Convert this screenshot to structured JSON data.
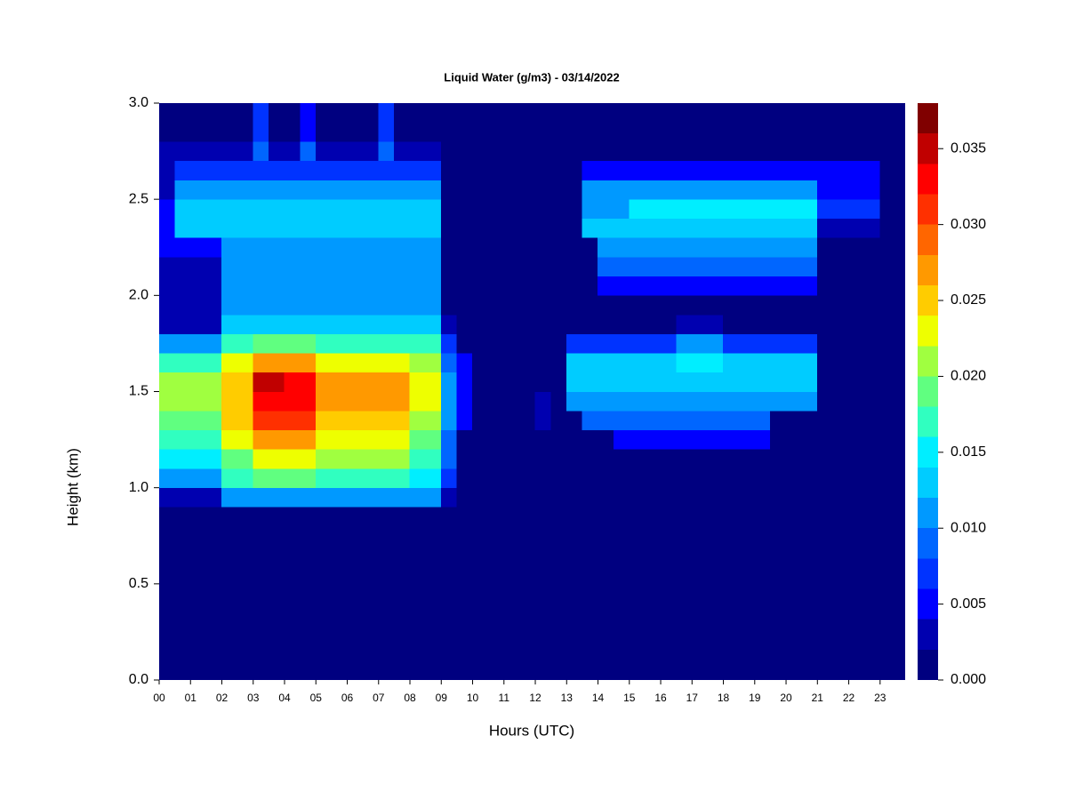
{
  "chart_data": {
    "type": "heatmap",
    "title": "Liquid Water (g/m3) - 03/14/2022",
    "xlabel": "Hours (UTC)",
    "ylabel": "Height (km)",
    "x": [
      0,
      0.5,
      1,
      1.5,
      2,
      2.5,
      3,
      3.5,
      4,
      4.5,
      5,
      5.5,
      6,
      6.5,
      7,
      7.5,
      8,
      8.5,
      9,
      9.5,
      10,
      10.5,
      11,
      11.5,
      12,
      12.5,
      13,
      13.5,
      14,
      14.5,
      15,
      15.5,
      16,
      16.5,
      17,
      17.5,
      18,
      18.5,
      19,
      19.5,
      20,
      20.5,
      21,
      21.5,
      22,
      22.5,
      23,
      23.5
    ],
    "y": [
      0,
      0.9,
      1.0,
      1.1,
      1.2,
      1.3,
      1.4,
      1.5,
      1.6,
      1.7,
      1.8,
      1.9,
      2.0,
      2.1,
      2.2,
      2.3,
      2.4,
      2.5,
      2.6,
      2.7,
      2.8
    ],
    "z": [
      [
        0,
        0,
        0,
        0,
        0,
        0,
        0,
        0,
        0,
        0,
        0,
        0,
        0,
        0,
        0,
        0,
        0,
        0,
        0,
        0,
        0,
        0,
        0,
        0,
        0,
        0,
        0,
        0,
        0,
        0,
        0,
        0,
        0,
        0,
        0,
        0,
        0,
        0,
        0,
        0,
        0,
        0,
        0,
        0,
        0,
        0,
        0,
        0
      ],
      [
        0.003,
        0.003,
        0.003,
        0.003,
        0.01,
        0.01,
        0.01,
        0.01,
        0.01,
        0.01,
        0.01,
        0.01,
        0.01,
        0.01,
        0.01,
        0.01,
        0.01,
        0.01,
        0.003,
        0,
        0,
        0,
        0,
        0,
        0,
        0,
        0,
        0,
        0,
        0,
        0,
        0,
        0,
        0,
        0,
        0,
        0,
        0,
        0,
        0,
        0,
        0,
        0,
        0,
        0,
        0,
        0,
        0
      ],
      [
        0.01,
        0.01,
        0.01,
        0.01,
        0.016,
        0.016,
        0.018,
        0.018,
        0.018,
        0.018,
        0.016,
        0.016,
        0.016,
        0.016,
        0.016,
        0.016,
        0.014,
        0.014,
        0.006,
        0,
        0,
        0,
        0,
        0,
        0,
        0,
        0,
        0,
        0,
        0,
        0,
        0,
        0,
        0,
        0,
        0,
        0,
        0,
        0,
        0,
        0,
        0,
        0,
        0,
        0,
        0,
        0,
        0
      ],
      [
        0.014,
        0.014,
        0.014,
        0.014,
        0.019,
        0.019,
        0.022,
        0.022,
        0.022,
        0.022,
        0.02,
        0.02,
        0.02,
        0.02,
        0.02,
        0.02,
        0.017,
        0.017,
        0.008,
        0,
        0,
        0,
        0,
        0,
        0,
        0,
        0,
        0,
        0,
        0,
        0,
        0,
        0,
        0,
        0,
        0,
        0,
        0,
        0,
        0,
        0,
        0,
        0,
        0,
        0,
        0,
        0,
        0
      ],
      [
        0.017,
        0.017,
        0.017,
        0.017,
        0.022,
        0.022,
        0.026,
        0.026,
        0.026,
        0.026,
        0.023,
        0.023,
        0.023,
        0.023,
        0.023,
        0.023,
        0.019,
        0.019,
        0.009,
        0,
        0,
        0,
        0,
        0,
        0,
        0,
        0,
        0,
        0,
        0.004,
        0.004,
        0.004,
        0.004,
        0.004,
        0.004,
        0.004,
        0.004,
        0.004,
        0.004,
        0,
        0,
        0,
        0,
        0,
        0,
        0,
        0,
        0
      ],
      [
        0.019,
        0.019,
        0.019,
        0.019,
        0.024,
        0.024,
        0.03,
        0.03,
        0.03,
        0.03,
        0.025,
        0.025,
        0.025,
        0.025,
        0.025,
        0.025,
        0.021,
        0.021,
        0.01,
        0.004,
        0,
        0,
        0,
        0,
        0.003,
        0,
        0,
        0.009,
        0.009,
        0.009,
        0.009,
        0.009,
        0.009,
        0.009,
        0.009,
        0.009,
        0.009,
        0.009,
        0.009,
        0,
        0,
        0,
        0,
        0,
        0,
        0,
        0,
        0
      ],
      [
        0.02,
        0.02,
        0.02,
        0.02,
        0.025,
        0.025,
        0.033,
        0.033,
        0.032,
        0.032,
        0.026,
        0.026,
        0.026,
        0.026,
        0.026,
        0.026,
        0.022,
        0.022,
        0.011,
        0.005,
        0,
        0,
        0,
        0,
        0.003,
        0,
        0.01,
        0.01,
        0.01,
        0.01,
        0.01,
        0.01,
        0.01,
        0.01,
        0.01,
        0.01,
        0.01,
        0.01,
        0.01,
        0.01,
        0.01,
        0.01,
        0,
        0,
        0,
        0,
        0,
        0
      ],
      [
        0.02,
        0.02,
        0.02,
        0.02,
        0.025,
        0.025,
        0.034,
        0.034,
        0.033,
        0.033,
        0.026,
        0.026,
        0.026,
        0.026,
        0.026,
        0.026,
        0.022,
        0.022,
        0.011,
        0.005,
        0,
        0,
        0,
        0,
        0,
        0,
        0.012,
        0.012,
        0.012,
        0.012,
        0.012,
        0.012,
        0.012,
        0.013,
        0.013,
        0.013,
        0.012,
        0.012,
        0.012,
        0.012,
        0.012,
        0.012,
        0,
        0,
        0,
        0,
        0,
        0
      ],
      [
        0.017,
        0.017,
        0.017,
        0.017,
        0.022,
        0.022,
        0.026,
        0.026,
        0.026,
        0.026,
        0.023,
        0.023,
        0.023,
        0.023,
        0.023,
        0.023,
        0.02,
        0.02,
        0.009,
        0.004,
        0,
        0,
        0,
        0,
        0,
        0,
        0.012,
        0.012,
        0.012,
        0.012,
        0.012,
        0.012,
        0.012,
        0.014,
        0.014,
        0.014,
        0.012,
        0.012,
        0.012,
        0.012,
        0.012,
        0.012,
        0,
        0,
        0,
        0,
        0,
        0
      ],
      [
        0.011,
        0.011,
        0.011,
        0.011,
        0.016,
        0.016,
        0.018,
        0.018,
        0.018,
        0.018,
        0.016,
        0.016,
        0.016,
        0.016,
        0.016,
        0.016,
        0.016,
        0.016,
        0.006,
        0,
        0,
        0,
        0,
        0,
        0,
        0,
        0.006,
        0.006,
        0.006,
        0.006,
        0.006,
        0.006,
        0.006,
        0.01,
        0.01,
        0.01,
        0.006,
        0.006,
        0.006,
        0.006,
        0.006,
        0.006,
        0,
        0,
        0,
        0,
        0,
        0
      ],
      [
        0.003,
        0.003,
        0.003,
        0.003,
        0.012,
        0.012,
        0.012,
        0.012,
        0.012,
        0.012,
        0.012,
        0.012,
        0.012,
        0.012,
        0.012,
        0.012,
        0.012,
        0.012,
        0.002,
        0,
        0,
        0,
        0,
        0,
        0,
        0,
        0,
        0,
        0,
        0,
        0,
        0,
        0,
        0.003,
        0.003,
        0.003,
        0,
        0,
        0,
        0,
        0,
        0,
        0,
        0,
        0,
        0,
        0,
        0
      ],
      [
        0.002,
        0.002,
        0.002,
        0.002,
        0.011,
        0.011,
        0.011,
        0.011,
        0.011,
        0.011,
        0.011,
        0.011,
        0.011,
        0.011,
        0.011,
        0.011,
        0.011,
        0.011,
        0,
        0,
        0,
        0,
        0,
        0,
        0,
        0,
        0,
        0,
        0,
        0,
        0,
        0,
        0,
        0,
        0,
        0,
        0,
        0,
        0,
        0,
        0,
        0,
        0,
        0,
        0,
        0,
        0,
        0
      ],
      [
        0.002,
        0.002,
        0.002,
        0.002,
        0.01,
        0.01,
        0.01,
        0.01,
        0.01,
        0.01,
        0.01,
        0.01,
        0.01,
        0.01,
        0.01,
        0.01,
        0.01,
        0.01,
        0,
        0,
        0,
        0,
        0,
        0,
        0,
        0,
        0,
        0,
        0.004,
        0.004,
        0.004,
        0.004,
        0.004,
        0.004,
        0.004,
        0.004,
        0.004,
        0.004,
        0.004,
        0.004,
        0.004,
        0.004,
        0,
        0,
        0,
        0,
        0,
        0
      ],
      [
        0.003,
        0.003,
        0.003,
        0.003,
        0.01,
        0.01,
        0.01,
        0.01,
        0.01,
        0.01,
        0.01,
        0.01,
        0.01,
        0.01,
        0.01,
        0.01,
        0.01,
        0.01,
        0,
        0,
        0,
        0,
        0,
        0,
        0,
        0,
        0,
        0,
        0.008,
        0.008,
        0.008,
        0.008,
        0.008,
        0.008,
        0.008,
        0.008,
        0.008,
        0.008,
        0.008,
        0.008,
        0.008,
        0.008,
        0,
        0,
        0,
        0,
        0,
        0
      ],
      [
        0.005,
        0.005,
        0.005,
        0.005,
        0.011,
        0.011,
        0.011,
        0.011,
        0.011,
        0.011,
        0.011,
        0.011,
        0.011,
        0.011,
        0.011,
        0.011,
        0.011,
        0.011,
        0,
        0,
        0,
        0,
        0,
        0,
        0,
        0,
        0,
        0,
        0.01,
        0.01,
        0.01,
        0.01,
        0.01,
        0.01,
        0.01,
        0.01,
        0.01,
        0.01,
        0.01,
        0.01,
        0.01,
        0.01,
        0,
        0,
        0,
        0,
        0,
        0
      ],
      [
        0.004,
        0.012,
        0.012,
        0.012,
        0.012,
        0.012,
        0.012,
        0.012,
        0.012,
        0.012,
        0.012,
        0.012,
        0.012,
        0.012,
        0.012,
        0.012,
        0.012,
        0.012,
        0,
        0,
        0,
        0,
        0,
        0,
        0,
        0,
        0,
        0.012,
        0.012,
        0.012,
        0.012,
        0.012,
        0.012,
        0.012,
        0.012,
        0.012,
        0.012,
        0.012,
        0.012,
        0.012,
        0.012,
        0.012,
        0.003,
        0.003,
        0.003,
        0.003,
        0,
        0
      ],
      [
        0.004,
        0.013,
        0.013,
        0.013,
        0.013,
        0.013,
        0.013,
        0.013,
        0.013,
        0.013,
        0.013,
        0.013,
        0.013,
        0.013,
        0.013,
        0.013,
        0.013,
        0.013,
        0,
        0,
        0,
        0,
        0,
        0,
        0,
        0,
        0,
        0.01,
        0.01,
        0.01,
        0.014,
        0.014,
        0.014,
        0.014,
        0.014,
        0.014,
        0.014,
        0.014,
        0.014,
        0.014,
        0.014,
        0.014,
        0.006,
        0.006,
        0.006,
        0.006,
        0,
        0
      ],
      [
        0.003,
        0.01,
        0.01,
        0.01,
        0.01,
        0.01,
        0.01,
        0.01,
        0.01,
        0.01,
        0.01,
        0.01,
        0.01,
        0.01,
        0.01,
        0.01,
        0.01,
        0.01,
        0,
        0,
        0,
        0,
        0,
        0,
        0,
        0,
        0,
        0.011,
        0.011,
        0.011,
        0.011,
        0.011,
        0.011,
        0.011,
        0.011,
        0.011,
        0.011,
        0.011,
        0.011,
        0.011,
        0.011,
        0.011,
        0.005,
        0.005,
        0.005,
        0.005,
        0,
        0
      ],
      [
        0.002,
        0.006,
        0.006,
        0.006,
        0.006,
        0.006,
        0.006,
        0.006,
        0.006,
        0.006,
        0.006,
        0.006,
        0.006,
        0.006,
        0.006,
        0.006,
        0.006,
        0.006,
        0,
        0,
        0,
        0,
        0,
        0,
        0,
        0,
        0,
        0.005,
        0.005,
        0.005,
        0.005,
        0.005,
        0.005,
        0.005,
        0.005,
        0.005,
        0.005,
        0.005,
        0.005,
        0.005,
        0.005,
        0.005,
        0.005,
        0.005,
        0.005,
        0.005,
        0,
        0
      ],
      [
        0.002,
        0.002,
        0.002,
        0.002,
        0.002,
        0.002,
        0.008,
        0.002,
        0.002,
        0.008,
        0.002,
        0.002,
        0.002,
        0.002,
        0.008,
        0.002,
        0.002,
        0.002,
        0,
        0,
        0,
        0,
        0,
        0,
        0,
        0,
        0,
        0.001,
        0.001,
        0.001,
        0.001,
        0.001,
        0.001,
        0.001,
        0.001,
        0.001,
        0.001,
        0.001,
        0.001,
        0.001,
        0.001,
        0.001,
        0.001,
        0.001,
        0.001,
        0.001,
        0,
        0
      ],
      [
        0,
        0,
        0,
        0,
        0,
        0,
        0.006,
        0,
        0,
        0.005,
        0,
        0,
        0,
        0,
        0.006,
        0,
        0,
        0,
        0,
        0,
        0,
        0,
        0,
        0,
        0,
        0,
        0,
        0,
        0,
        0,
        0,
        0,
        0,
        0,
        0,
        0,
        0,
        0,
        0,
        0,
        0,
        0,
        0,
        0,
        0,
        0,
        0,
        0
      ]
    ],
    "xlim": [
      0,
      23.8
    ],
    "ylim": [
      0,
      3
    ],
    "xticks": [
      {
        "value": 0,
        "label": "00"
      },
      {
        "value": 1,
        "label": "01"
      },
      {
        "value": 2,
        "label": "02"
      },
      {
        "value": 3,
        "label": "03"
      },
      {
        "value": 4,
        "label": "04"
      },
      {
        "value": 5,
        "label": "05"
      },
      {
        "value": 6,
        "label": "06"
      },
      {
        "value": 7,
        "label": "07"
      },
      {
        "value": 8,
        "label": "08"
      },
      {
        "value": 9,
        "label": "09"
      },
      10,
      11,
      12,
      13,
      14,
      15,
      16,
      17,
      18,
      19,
      20,
      21,
      22,
      23
    ],
    "yticks": [
      {
        "value": 0,
        "label": "0.0"
      },
      0.5,
      {
        "value": 1,
        "label": "1.0"
      },
      1.5,
      {
        "value": 2,
        "label": "2.0"
      },
      2.5,
      {
        "value": 3,
        "label": "3.0"
      }
    ],
    "colorbar": {
      "levels": [
        0,
        0.002,
        0.004,
        0.006,
        0.008,
        0.01,
        0.012,
        0.014,
        0.016,
        0.018,
        0.02,
        0.022,
        0.024,
        0.026,
        0.028,
        0.03,
        0.032,
        0.034,
        0.036,
        0.038
      ],
      "colors": [
        "#000080",
        "#0000b0",
        "#0000ff",
        "#0033ff",
        "#0066ff",
        "#0099ff",
        "#00ccff",
        "#00eeff",
        "#30ffc0",
        "#60ff80",
        "#a0ff40",
        "#eeff00",
        "#ffcc00",
        "#ff9900",
        "#ff6600",
        "#ff3000",
        "#ff0000",
        "#c00000",
        "#800000"
      ],
      "ticks": [
        {
          "value": 0,
          "label": "0.000"
        },
        0.005,
        {
          "value": 0.01,
          "label": "0.010"
        },
        0.015,
        {
          "value": 0.02,
          "label": "0.020"
        },
        0.025,
        {
          "value": 0.03,
          "label": "0.030"
        },
        0.035
      ]
    }
  }
}
